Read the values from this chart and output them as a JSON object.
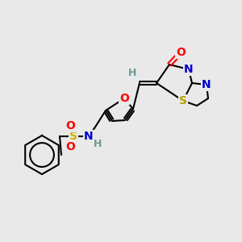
{
  "bg_color": "#e9e9e9",
  "atom_colors": {
    "O": "#ff0000",
    "N": "#0000cc",
    "S_bicy": "#b8a000",
    "S_sulf": "#ccb000",
    "H": "#6a9a9a",
    "C": "#000000"
  },
  "figsize": [
    3.0,
    3.0
  ],
  "dpi": 100
}
